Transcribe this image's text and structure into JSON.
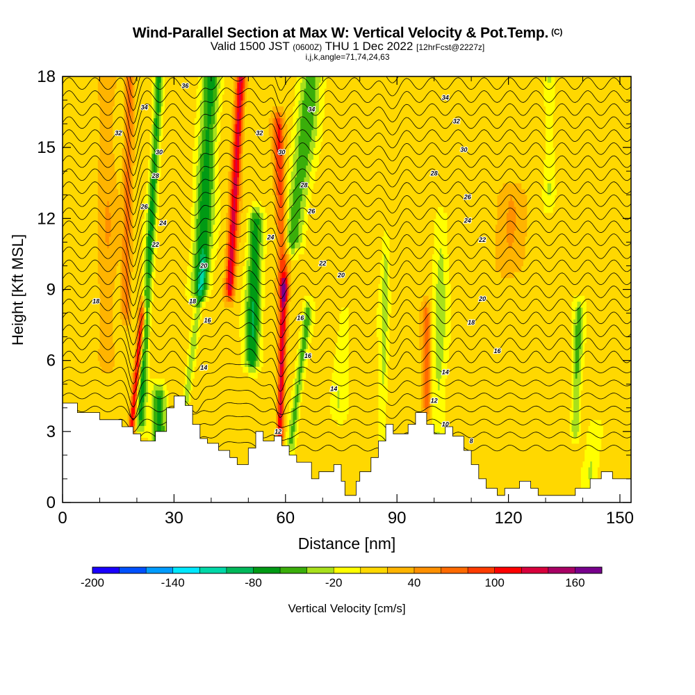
{
  "title": {
    "main": "Wind-Parallel Section at Max W: Vertical Velocity & Pot.Temp.",
    "main_suffix": "(C)",
    "valid_prefix": "Valid 1500 JST",
    "valid_utc": "(0600Z)",
    "valid_date": "THU 1 Dec 2022",
    "forecast_info": "[12hrFcst@2227z]",
    "params": "i,j,k,angle=71,74,24,63"
  },
  "chart_data": {
    "type": "heatmap",
    "xlabel": "Distance [nm]",
    "ylabel": "Height [Kft MSL]",
    "xlim": [
      0,
      153
    ],
    "ylim": [
      0,
      18
    ],
    "x_ticks": [
      0,
      30,
      60,
      90,
      120,
      150
    ],
    "y_ticks": [
      0,
      3,
      6,
      9,
      12,
      15,
      18
    ],
    "colorbar": {
      "label": "Vertical Velocity [cm/s]",
      "min": -200,
      "max": 180,
      "step": 20,
      "tick_labels": [
        -200,
        -140,
        -80,
        -20,
        40,
        100,
        160
      ],
      "colors": [
        "#1a00ff",
        "#0050ff",
        "#009cff",
        "#00e8ff",
        "#00d8a8",
        "#00b85a",
        "#009a14",
        "#3aae0a",
        "#a8e01c",
        "#ffff00",
        "#ffd800",
        "#ffb400",
        "#ff9000",
        "#ff6a00",
        "#ff3c00",
        "#ff0000",
        "#d8003c",
        "#a80064",
        "#78008c"
      ]
    },
    "terrain": [
      [
        0,
        4.2
      ],
      [
        4,
        4.2
      ],
      [
        4,
        3.8
      ],
      [
        10,
        3.8
      ],
      [
        10,
        3.5
      ],
      [
        16,
        3.5
      ],
      [
        16,
        3.2
      ],
      [
        19,
        3.2
      ],
      [
        19,
        2.9
      ],
      [
        21,
        2.9
      ],
      [
        21,
        2.6
      ],
      [
        25,
        2.6
      ],
      [
        25,
        3.0
      ],
      [
        28,
        3.0
      ],
      [
        28,
        4.0
      ],
      [
        30,
        4.0
      ],
      [
        30,
        4.5
      ],
      [
        33,
        4.5
      ],
      [
        33,
        4.1
      ],
      [
        35,
        4.1
      ],
      [
        35,
        3.3
      ],
      [
        37,
        3.3
      ],
      [
        37,
        2.7
      ],
      [
        39,
        2.7
      ],
      [
        39,
        2.5
      ],
      [
        42,
        2.5
      ],
      [
        42,
        2.2
      ],
      [
        45,
        2.2
      ],
      [
        45,
        1.9
      ],
      [
        47,
        1.9
      ],
      [
        47,
        1.6
      ],
      [
        50,
        1.6
      ],
      [
        50,
        2.3
      ],
      [
        52,
        2.3
      ],
      [
        52,
        3.0
      ],
      [
        54,
        3.0
      ],
      [
        54,
        2.6
      ],
      [
        57,
        2.6
      ],
      [
        57,
        2.8
      ],
      [
        59,
        2.8
      ],
      [
        59,
        2.4
      ],
      [
        61,
        2.4
      ],
      [
        61,
        2.0
      ],
      [
        63,
        2.0
      ],
      [
        63,
        1.7
      ],
      [
        67,
        1.7
      ],
      [
        67,
        1.0
      ],
      [
        69,
        1.0
      ],
      [
        69,
        1.3
      ],
      [
        73,
        1.3
      ],
      [
        73,
        1.6
      ],
      [
        75,
        1.6
      ],
      [
        75,
        0.9
      ],
      [
        76,
        0.9
      ],
      [
        76,
        0.3
      ],
      [
        79,
        0.3
      ],
      [
        79,
        0.9
      ],
      [
        80,
        0.9
      ],
      [
        80,
        1.3
      ],
      [
        83,
        1.3
      ],
      [
        83,
        1.9
      ],
      [
        85,
        1.9
      ],
      [
        85,
        2.6
      ],
      [
        87,
        2.6
      ],
      [
        87,
        3.3
      ],
      [
        89,
        3.3
      ],
      [
        89,
        2.9
      ],
      [
        93,
        2.9
      ],
      [
        93,
        3.3
      ],
      [
        95,
        3.3
      ],
      [
        95,
        3.8
      ],
      [
        98,
        3.8
      ],
      [
        98,
        3.3
      ],
      [
        100,
        3.3
      ],
      [
        100,
        2.9
      ],
      [
        103,
        2.9
      ],
      [
        103,
        3.2
      ],
      [
        105,
        3.2
      ],
      [
        105,
        2.8
      ],
      [
        108,
        2.8
      ],
      [
        108,
        2.2
      ],
      [
        110,
        2.2
      ],
      [
        110,
        1.6
      ],
      [
        112,
        1.6
      ],
      [
        112,
        1.0
      ],
      [
        114,
        1.0
      ],
      [
        114,
        0.6
      ],
      [
        117,
        0.6
      ],
      [
        117,
        0.3
      ],
      [
        119,
        0.3
      ],
      [
        119,
        0.6
      ],
      [
        123,
        0.6
      ],
      [
        123,
        0.9
      ],
      [
        126,
        0.9
      ],
      [
        126,
        0.6
      ],
      [
        128,
        0.6
      ],
      [
        128,
        0.3
      ],
      [
        138,
        0.3
      ],
      [
        138,
        0.6
      ],
      [
        142,
        0.6
      ],
      [
        142,
        1.0
      ],
      [
        145,
        1.0
      ],
      [
        145,
        1.3
      ],
      [
        148,
        1.3
      ],
      [
        148,
        1.0
      ],
      [
        153,
        1.0
      ]
    ],
    "theta_labels": [
      {
        "x": 33,
        "y": 17.6,
        "v": "36"
      },
      {
        "x": 22,
        "y": 16.7,
        "v": "34"
      },
      {
        "x": 67,
        "y": 16.6,
        "v": "34"
      },
      {
        "x": 103,
        "y": 17.1,
        "v": "34"
      },
      {
        "x": 15,
        "y": 15.6,
        "v": "32"
      },
      {
        "x": 53,
        "y": 15.6,
        "v": "32"
      },
      {
        "x": 106,
        "y": 16.1,
        "v": "32"
      },
      {
        "x": 26,
        "y": 14.8,
        "v": "30"
      },
      {
        "x": 59,
        "y": 14.8,
        "v": "30"
      },
      {
        "x": 108,
        "y": 14.9,
        "v": "30"
      },
      {
        "x": 25,
        "y": 13.8,
        "v": "28"
      },
      {
        "x": 65,
        "y": 13.4,
        "v": "28"
      },
      {
        "x": 100,
        "y": 13.9,
        "v": "28"
      },
      {
        "x": 22,
        "y": 12.5,
        "v": "26"
      },
      {
        "x": 67,
        "y": 12.3,
        "v": "26"
      },
      {
        "x": 109,
        "y": 12.9,
        "v": "26"
      },
      {
        "x": 27,
        "y": 11.8,
        "v": "24"
      },
      {
        "x": 56,
        "y": 11.2,
        "v": "24"
      },
      {
        "x": 109,
        "y": 11.9,
        "v": "24"
      },
      {
        "x": 25,
        "y": 10.9,
        "v": "22"
      },
      {
        "x": 70,
        "y": 10.1,
        "v": "22"
      },
      {
        "x": 113,
        "y": 11.1,
        "v": "22"
      },
      {
        "x": 38,
        "y": 10.0,
        "v": "20"
      },
      {
        "x": 75,
        "y": 9.6,
        "v": "20"
      },
      {
        "x": 113,
        "y": 8.6,
        "v": "20"
      },
      {
        "x": 9,
        "y": 8.5,
        "v": "18"
      },
      {
        "x": 35,
        "y": 8.5,
        "v": "18"
      },
      {
        "x": 110,
        "y": 7.6,
        "v": "18"
      },
      {
        "x": 39,
        "y": 7.7,
        "v": "16"
      },
      {
        "x": 64,
        "y": 7.8,
        "v": "16"
      },
      {
        "x": 66,
        "y": 6.2,
        "v": "16"
      },
      {
        "x": 117,
        "y": 6.4,
        "v": "16"
      },
      {
        "x": 38,
        "y": 5.7,
        "v": "14"
      },
      {
        "x": 73,
        "y": 4.8,
        "v": "14"
      },
      {
        "x": 103,
        "y": 5.5,
        "v": "14"
      },
      {
        "x": 100,
        "y": 4.3,
        "v": "12"
      },
      {
        "x": 58,
        "y": 3.0,
        "v": "12"
      },
      {
        "x": 103,
        "y": 3.3,
        "v": "10"
      },
      {
        "x": 110,
        "y": 2.6,
        "v": "8"
      }
    ]
  }
}
